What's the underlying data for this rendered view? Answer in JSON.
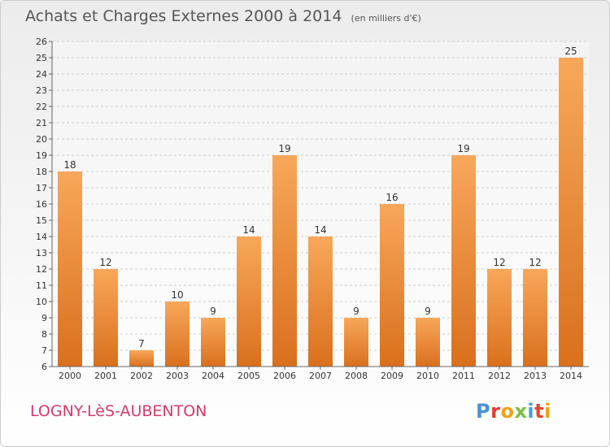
{
  "title": {
    "main": "Achats et Charges Externes 2000 à 2014",
    "unit": "(en milliers d'€)"
  },
  "footer": {
    "commune": "LOGNY-LèS-AUBENTON",
    "logo_letters": [
      "P",
      "r",
      "o",
      "x",
      "i",
      "t",
      "i"
    ],
    "logo_colors": [
      "#4a90d9",
      "#e63b2e",
      "#f2a017",
      "#7ac043",
      "#3da0e3",
      "#e8452c",
      "#f2a017"
    ]
  },
  "colors": {
    "bar_top": "#f8a75a",
    "bar_bottom": "#d9701d",
    "grid": "#cfcfcf",
    "axis": "#666666",
    "text": "#333333"
  },
  "chart_data": {
    "type": "bar",
    "categories": [
      "2000",
      "2001",
      "2002",
      "2003",
      "2004",
      "2005",
      "2006",
      "2007",
      "2008",
      "2009",
      "2010",
      "2011",
      "2012",
      "2013",
      "2014"
    ],
    "values": [
      18,
      12,
      7,
      10,
      9,
      14,
      19,
      14,
      9,
      16,
      9,
      19,
      12,
      12,
      25
    ],
    "ylim": [
      6,
      26
    ],
    "yticks": [
      6,
      7,
      8,
      9,
      10,
      11,
      12,
      13,
      14,
      15,
      16,
      17,
      18,
      19,
      20,
      21,
      22,
      23,
      24,
      25,
      26
    ],
    "grid": true,
    "data_labels": true,
    "title": "Achats et Charges Externes 2000 à 2014",
    "xlabel": "",
    "ylabel": ""
  }
}
